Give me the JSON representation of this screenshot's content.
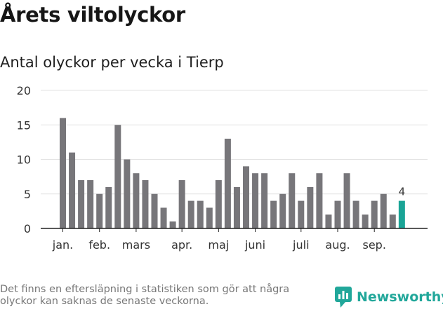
{
  "title": "Årets viltolyckor",
  "subtitle": "Antal olyckor per vecka i Tierp",
  "footnote": "Det finns en eftersläpning i statistiken som gör att några olyckor kan saknas de senaste veckorna.",
  "brand": {
    "name": "Newsworthy",
    "icon": "newsworthy-logo-icon",
    "color": "#21a79a"
  },
  "colors": {
    "bar": "#77767a",
    "highlight": "#1aa496",
    "grid": "#e3e3e3",
    "axis": "#222222",
    "text": "#333333"
  },
  "chart_data": {
    "type": "bar",
    "title": "Antal olyckor per vecka i Tierp",
    "xlabel": "",
    "ylabel": "",
    "ylim": [
      0,
      20
    ],
    "yticks": [
      0,
      5,
      10,
      15,
      20
    ],
    "grid": true,
    "weeks": [
      1,
      2,
      3,
      4,
      5,
      6,
      7,
      8,
      9,
      10,
      11,
      12,
      13,
      14,
      15,
      16,
      17,
      18,
      19,
      20,
      21,
      22,
      23,
      24,
      25,
      26,
      27,
      28,
      29,
      30,
      31,
      32,
      33,
      34,
      35,
      36,
      37,
      38
    ],
    "values": [
      16,
      11,
      7,
      7,
      5,
      6,
      15,
      10,
      8,
      7,
      5,
      3,
      1,
      7,
      4,
      4,
      3,
      7,
      13,
      6,
      9,
      8,
      8,
      4,
      5,
      8,
      4,
      6,
      8,
      2,
      4,
      8,
      4,
      2,
      4,
      5,
      2,
      4
    ],
    "highlight_index": 37,
    "highlight_label": "4",
    "month_labels": [
      {
        "label": "jan.",
        "week": 1
      },
      {
        "label": "feb.",
        "week": 5
      },
      {
        "label": "mars",
        "week": 9
      },
      {
        "label": "apr.",
        "week": 14
      },
      {
        "label": "maj",
        "week": 18
      },
      {
        "label": "juni",
        "week": 22
      },
      {
        "label": "juli",
        "week": 27
      },
      {
        "label": "aug.",
        "week": 31
      },
      {
        "label": "sep.",
        "week": 35
      }
    ]
  }
}
